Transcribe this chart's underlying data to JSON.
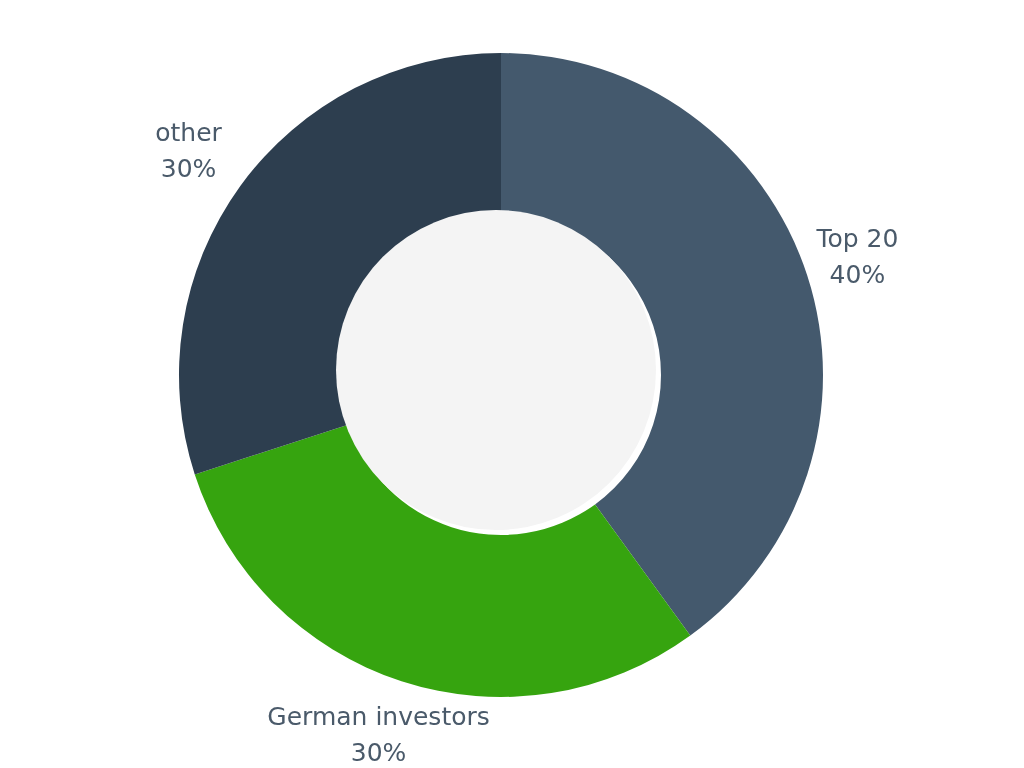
{
  "chart_data": {
    "type": "donut",
    "categories": [
      "Top 20",
      "German investors",
      "other"
    ],
    "values": [
      40,
      30,
      30
    ],
    "colors": [
      "#44596d",
      "#36a40f",
      "#2d3e4f"
    ],
    "value_labels": [
      "40%",
      "30%",
      "30%"
    ],
    "legend": false
  }
}
